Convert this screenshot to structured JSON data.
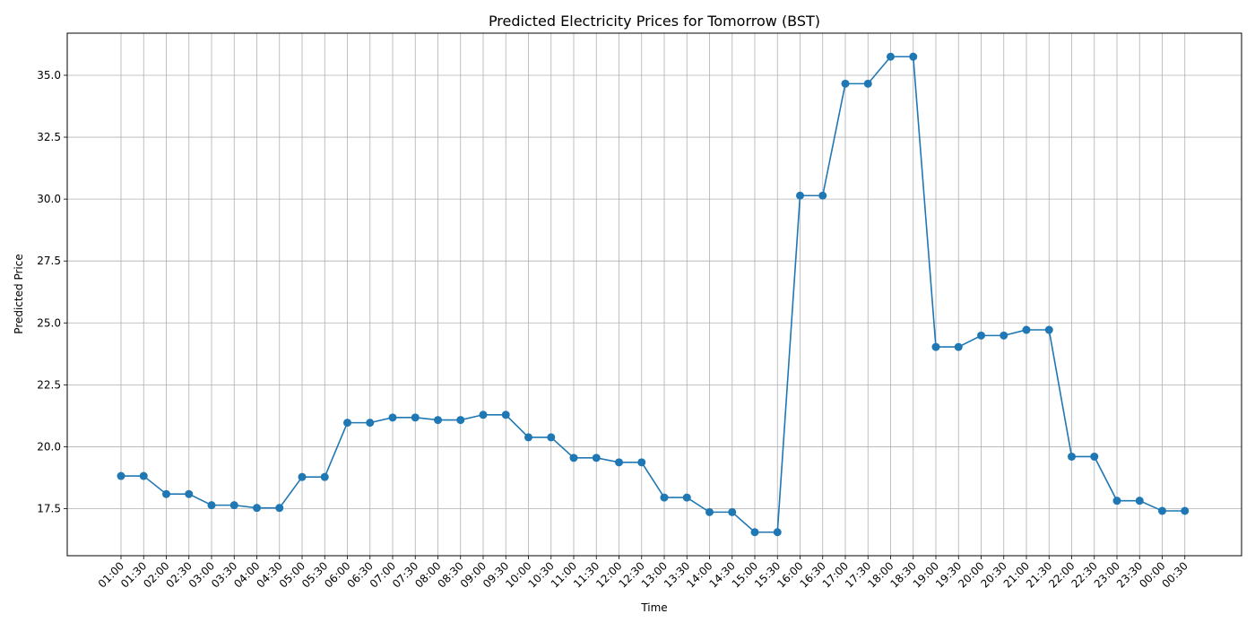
{
  "chart_data": {
    "type": "line",
    "title": "Predicted Electricity Prices for Tomorrow (BST)",
    "xlabel": "Time",
    "ylabel": "Predicted Price",
    "categories": [
      "01:00",
      "01:30",
      "02:00",
      "02:30",
      "03:00",
      "03:30",
      "04:00",
      "04:30",
      "05:00",
      "05:30",
      "06:00",
      "06:30",
      "07:00",
      "07:30",
      "08:00",
      "08:30",
      "09:00",
      "09:30",
      "10:00",
      "10:30",
      "11:00",
      "11:30",
      "12:00",
      "12:30",
      "13:00",
      "13:30",
      "14:00",
      "14:30",
      "15:00",
      "15:30",
      "16:00",
      "16:30",
      "17:00",
      "17:30",
      "18:00",
      "18:30",
      "19:00",
      "19:30",
      "20:00",
      "20:30",
      "21:00",
      "21:30",
      "22:00",
      "22:30",
      "23:00",
      "23:30",
      "00:00",
      "00:30"
    ],
    "series": [
      {
        "values": [
          18.82,
          18.82,
          18.09,
          18.09,
          17.64,
          17.64,
          17.53,
          17.53,
          18.78,
          18.78,
          20.97,
          20.97,
          21.18,
          21.18,
          21.08,
          21.08,
          21.29,
          21.29,
          20.38,
          20.38,
          19.55,
          19.55,
          19.37,
          19.37,
          17.95,
          17.95,
          17.36,
          17.36,
          16.55,
          16.55,
          30.14,
          30.14,
          34.66,
          34.66,
          35.75,
          35.75,
          24.03,
          24.03,
          24.49,
          24.49,
          24.72,
          24.72,
          19.6,
          19.6,
          17.82,
          17.82,
          17.41,
          17.41
        ],
        "color": "#1f77b4"
      }
    ],
    "yticks": [
      17.5,
      20.0,
      22.5,
      25.0,
      27.5,
      30.0,
      32.5,
      35.0
    ],
    "ylim": [
      15.6,
      36.7
    ],
    "grid": true,
    "marker": "circle"
  }
}
